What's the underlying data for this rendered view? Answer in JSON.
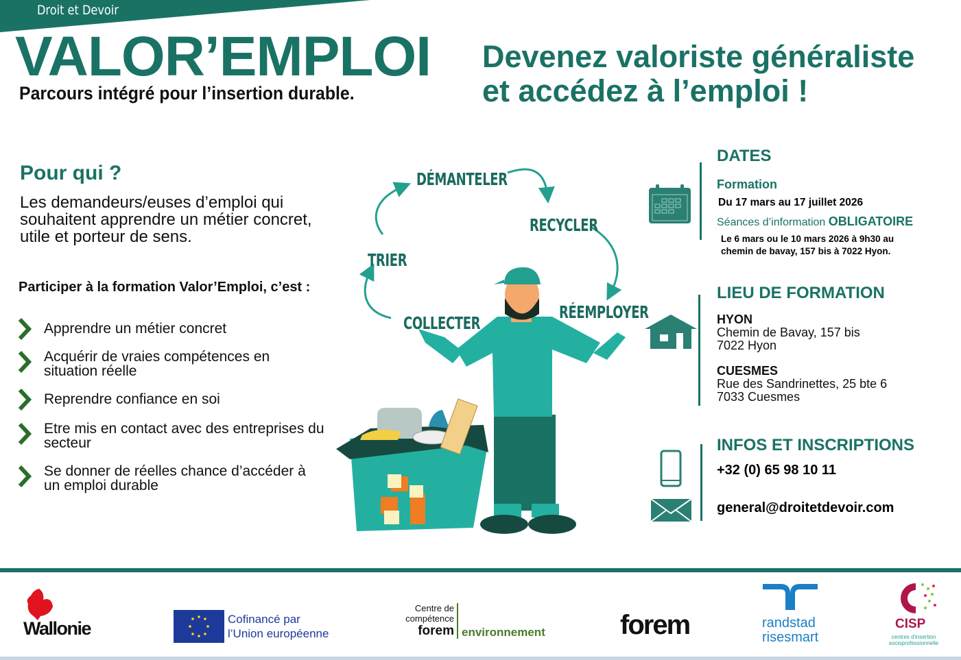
{
  "header": {
    "org": "Droit et Devoir",
    "title": "VALOR’EMPLOI",
    "subtitle": "Parcours intégré pour l’insertion durable.",
    "headline_1": "Devenez valoriste généraliste",
    "headline_2": "et accédez à l’emploi !"
  },
  "pour_qui": {
    "heading": "Pour qui ?",
    "text": "Les demandeurs/euses d’emploi qui souhaitent apprendre un métier concret, utile et porteur de sens."
  },
  "participer": {
    "heading": "Participer à la formation Valor’Emploi, c’est :",
    "items": [
      "Apprendre un métier concret",
      "Acquérir de vraies compétences en situation réelle",
      "Reprendre confiance en soi",
      "Etre mis en contact avec des entreprises du secteur",
      "Se donner de réelles chance d’accéder à un emploi durable"
    ]
  },
  "cycle": {
    "steps": [
      "DÉMANTELER",
      "RECYCLER",
      "RÉEMPLOYER",
      "COLLECTER",
      "TRIER"
    ]
  },
  "dates": {
    "heading": "DATES",
    "formation_label": "Formation",
    "formation_dates": "Du 17 mars au 17 juillet 2026",
    "seances_label": "Séances d’information",
    "seances_strong": "OBLIGATOIRE",
    "seances_line1": "Le 6 mars ou le 10 mars 2026 à 9h30 au",
    "seances_line2": "chemin de bavay, 157 bis à 7022 Hyon.",
    "icon": "calendar-icon"
  },
  "lieu": {
    "heading": "LIEU DE FORMATION",
    "icon": "house-icon",
    "sites": [
      {
        "name": "HYON",
        "line1": "Chemin de Bavay, 157 bis",
        "line2": "7022 Hyon"
      },
      {
        "name": "CUESMES",
        "line1": "Rue des Sandrinettes, 25 bte 6",
        "line2": "7033 Cuesmes"
      }
    ]
  },
  "infos": {
    "heading": "INFOS ET INSCRIPTIONS",
    "phone": "+32 (0) 65 98 10 11",
    "email": "general@droitetdevoir.com",
    "icons": [
      "phone-icon",
      "envelope-icon"
    ]
  },
  "footer": {
    "wallonie": "Wallonie",
    "eu_1": "Cofinancé par",
    "eu_2": "l’Union européenne",
    "cdc_1": "Centre de",
    "cdc_2": "compétence",
    "cdc_forem": "forem",
    "cdc_env": "environnement",
    "forem": "forem",
    "randstad_1": "randstad",
    "randstad_2": "risesmart",
    "cisp": "CISP",
    "cisp_sub_1": "centres d'insertion",
    "cisp_sub_2": "socioprofessionnelle"
  },
  "colors": {
    "brand": "#1a7265",
    "light_teal": "#23b0a1",
    "bullet": "#2a6e2a",
    "wallonie_red": "#e0141e",
    "eu_blue": "#1d3a9a",
    "randstad_blue": "#1a7fc4",
    "cisp": "#b0154a"
  }
}
